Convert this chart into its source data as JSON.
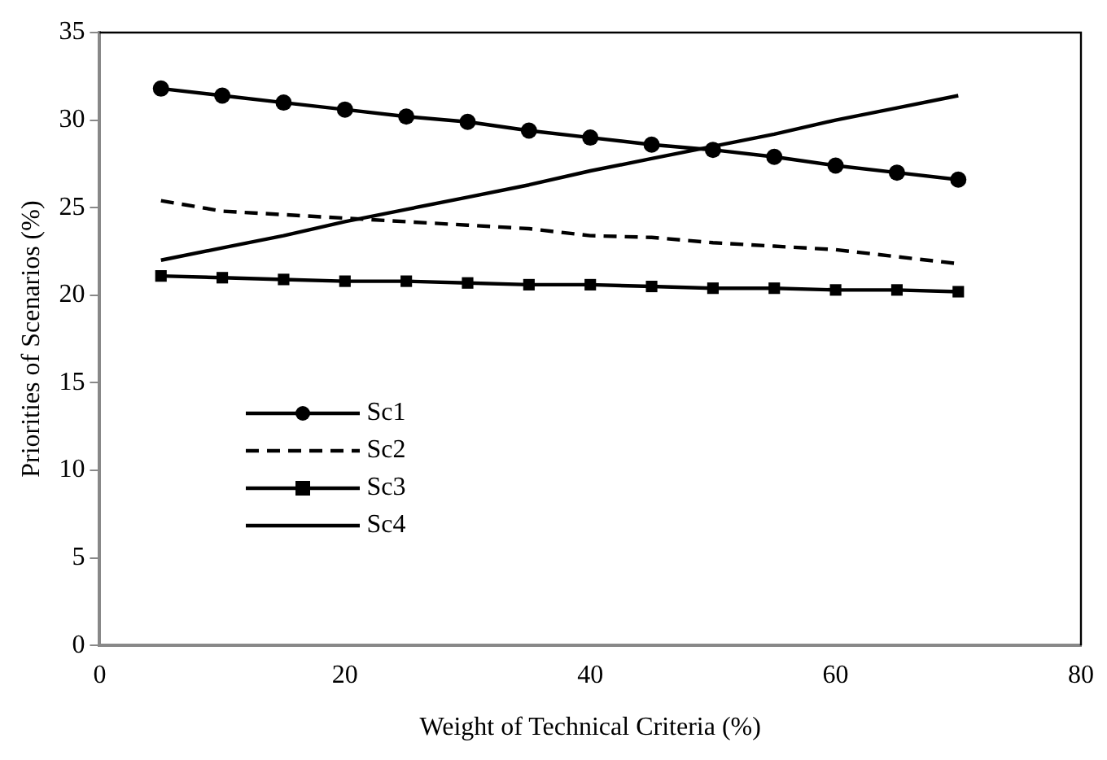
{
  "chart_data": {
    "type": "line",
    "xlabel": "Weight of Technical Criteria (%)",
    "ylabel": "Priorities of Scenarios (%)",
    "x": [
      5,
      10,
      15,
      20,
      25,
      30,
      35,
      40,
      45,
      50,
      55,
      60,
      65,
      70
    ],
    "series": [
      {
        "name": "Sc1",
        "color": "#000000",
        "marker": "circle",
        "line_style": "solid",
        "values": [
          31.8,
          31.4,
          31.0,
          30.6,
          30.2,
          29.9,
          29.4,
          29.0,
          28.6,
          28.3,
          27.9,
          27.4,
          27.0,
          26.6
        ]
      },
      {
        "name": "Sc2",
        "color": "#000000",
        "marker": "none",
        "line_style": "dashed",
        "values": [
          25.4,
          24.8,
          24.6,
          24.4,
          24.2,
          24.0,
          23.8,
          23.4,
          23.3,
          23.0,
          22.8,
          22.6,
          22.2,
          21.8
        ]
      },
      {
        "name": "Sc3",
        "color": "#000000",
        "marker": "square",
        "line_style": "solid",
        "values": [
          21.1,
          21.0,
          20.9,
          20.8,
          20.8,
          20.7,
          20.6,
          20.6,
          20.5,
          20.4,
          20.4,
          20.3,
          20.3,
          20.2
        ]
      },
      {
        "name": "Sc4",
        "color": "#000000",
        "marker": "none",
        "line_style": "solid",
        "values": [
          22.0,
          22.7,
          23.4,
          24.2,
          24.9,
          25.6,
          26.3,
          27.1,
          27.8,
          28.5,
          29.2,
          30.0,
          30.7,
          31.4
        ]
      }
    ],
    "xlim": [
      0,
      80
    ],
    "xticks": [
      0,
      20,
      40,
      60,
      80
    ],
    "ylim": [
      0,
      35
    ],
    "yticks": [
      0,
      5,
      10,
      15,
      20,
      25,
      30,
      35
    ],
    "grid": false,
    "legend": "bottom left"
  }
}
